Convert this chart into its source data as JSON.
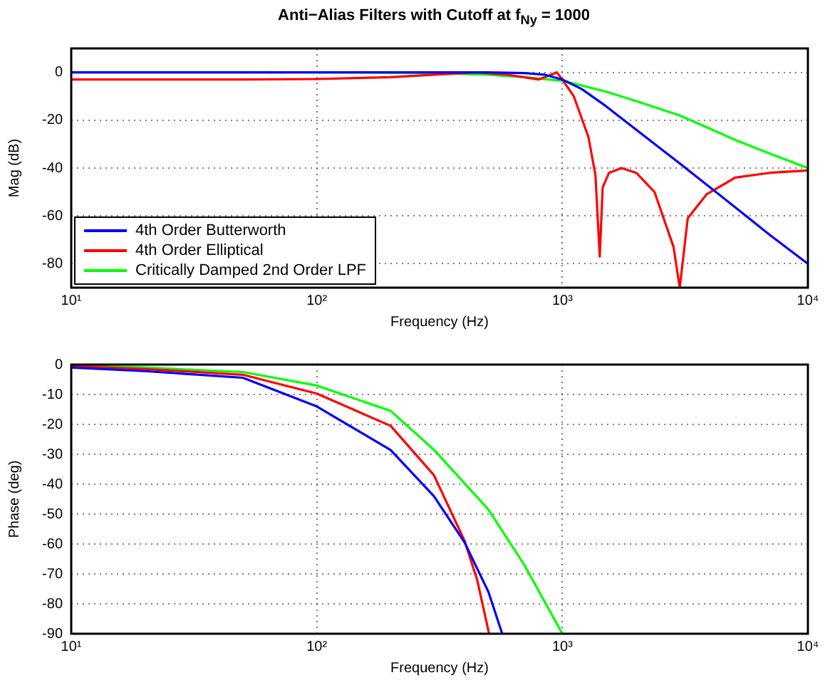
{
  "chart_data": [
    {
      "type": "line",
      "title": "Anti−Alias Filters with Cutoff at f$_{Ny}$ = 1000",
      "xlabel": "Frequency (Hz)",
      "ylabel": "Mag (dB)",
      "log": "x",
      "grid": true,
      "legend": "bottom left",
      "xlim": [
        10,
        10000
      ],
      "xticks": [
        {
          "value": 10,
          "label": "10¹"
        },
        {
          "value": 100,
          "label": "10²"
        },
        {
          "value": 1000,
          "label": "10³"
        },
        {
          "value": 10000,
          "label": "10⁴"
        }
      ],
      "ylim": [
        -90,
        10
      ],
      "yticks": [
        -80,
        -60,
        -40,
        -20,
        0
      ],
      "series": [
        {
          "name": "4th Order Butterworth",
          "color": "#0000ff",
          "x": [
            10,
            100,
            300,
            500,
            700,
            850,
            1000,
            1200,
            1500,
            2000,
            3000,
            5000,
            7000,
            10000
          ],
          "values": [
            0,
            0,
            0,
            0,
            -0.3,
            -1,
            -3,
            -7,
            -14,
            -24,
            -38,
            -56,
            -68,
            -80
          ]
        },
        {
          "name": "4th Order Elliptical",
          "color": "#ff0000",
          "x": [
            10,
            50,
            100,
            200,
            300,
            450,
            600,
            800,
            900,
            950,
            1000,
            1113,
            1277,
            1364,
            1420,
            1460,
            1550,
            1742,
            2000,
            2373,
            2837,
            3006,
            3241,
            3866,
            5058,
            7000,
            10000
          ],
          "values": [
            -3,
            -3,
            -2.8,
            -2,
            -1,
            0,
            -1,
            -3,
            -1,
            0,
            -3,
            -10,
            -27,
            -43,
            -77,
            -48,
            -42,
            -40,
            -42,
            -50,
            -73,
            -90,
            -61,
            -51,
            -44,
            -42,
            -41
          ]
        },
        {
          "name": "Critically Damped 2nd Order LPF",
          "color": "#00ff00",
          "x": [
            10,
            100,
            300,
            500,
            700,
            1000,
            1500,
            2000,
            3000,
            5000,
            7000,
            10000
          ],
          "values": [
            0,
            0,
            -0.3,
            -1,
            -2,
            -3.5,
            -8,
            -12,
            -18,
            -28,
            -34,
            -40
          ]
        }
      ]
    },
    {
      "type": "line",
      "xlabel": "Frequency (Hz)",
      "ylabel": "Phase (deg)",
      "log": "x",
      "grid": true,
      "xlim": [
        10,
        10000
      ],
      "xticks": [
        {
          "value": 10,
          "label": "10¹"
        },
        {
          "value": 100,
          "label": "10²"
        },
        {
          "value": 1000,
          "label": "10³"
        },
        {
          "value": 10000,
          "label": "10⁴"
        }
      ],
      "ylim": [
        -90,
        0
      ],
      "yticks": [
        -90,
        -80,
        -70,
        -60,
        -50,
        -40,
        -30,
        -20,
        -10,
        0
      ],
      "series": [
        {
          "color": "#0000ff",
          "x": [
            10,
            20,
            50,
            100,
            200,
            300,
            400,
            500,
            569
          ],
          "values": [
            -1,
            -2.2,
            -4.4,
            -14,
            -28.6,
            -44,
            -59.5,
            -76,
            -90
          ]
        },
        {
          "color": "#ff0000",
          "x": [
            10,
            20,
            50,
            100,
            200,
            300,
            400,
            450,
            503
          ],
          "values": [
            -0.5,
            -1.5,
            -3.4,
            -9.7,
            -20.5,
            -37,
            -59,
            -72,
            -90
          ]
        },
        {
          "color": "#00ff00",
          "x": [
            10,
            20,
            50,
            100,
            200,
            300,
            500,
            700,
            1000
          ],
          "values": [
            -0.3,
            -1,
            -2.5,
            -7,
            -15.5,
            -28.5,
            -48.5,
            -67,
            -90
          ]
        }
      ]
    }
  ]
}
